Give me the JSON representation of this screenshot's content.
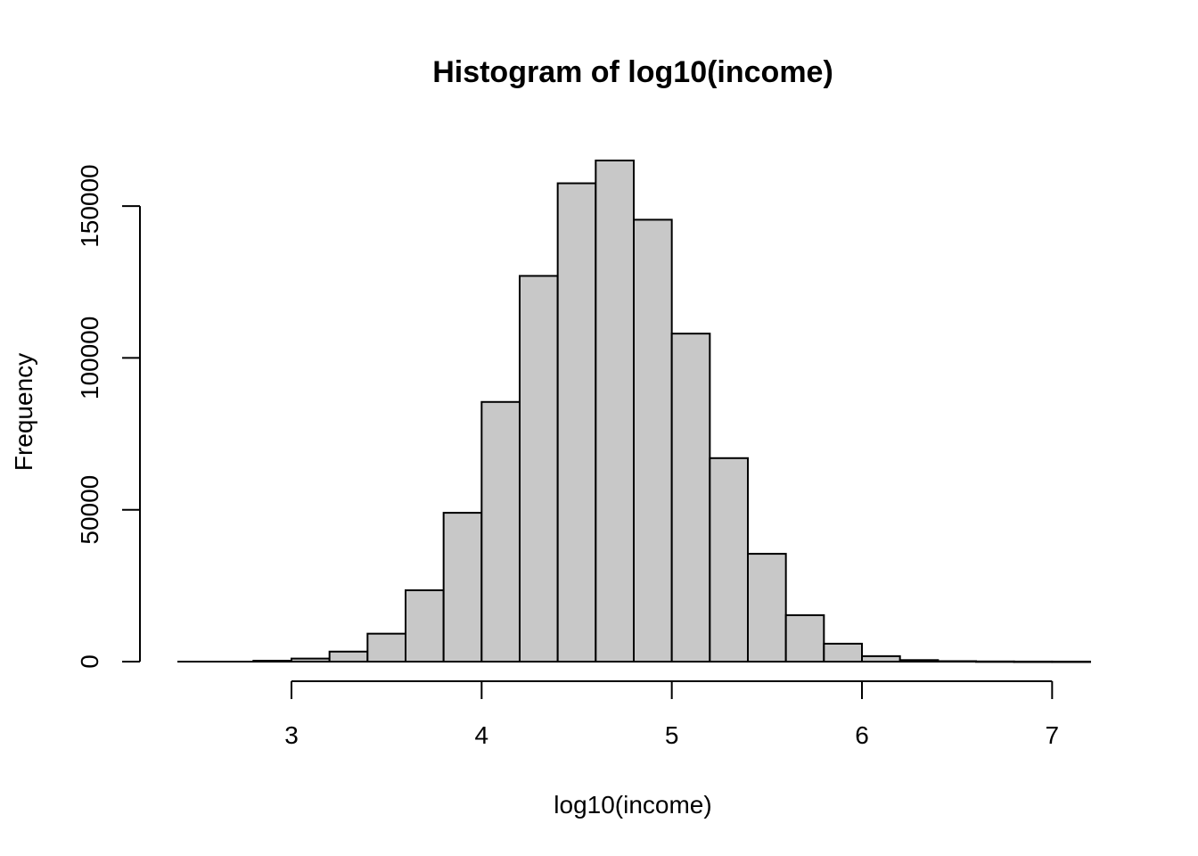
{
  "chart_data": {
    "type": "bar",
    "title": "Histogram of log10(income)",
    "xlabel": "log10(income)",
    "ylabel": "Frequency",
    "xlim": [
      2.4,
      7.2
    ],
    "ylim": [
      0,
      165000
    ],
    "x_ticks": [
      3,
      4,
      5,
      6,
      7
    ],
    "y_ticks": [
      0,
      50000,
      100000,
      150000
    ],
    "bar_fill": "#c8c8c8",
    "grid": false,
    "bins": [
      {
        "start": 2.4,
        "end": 2.6,
        "count": 0
      },
      {
        "start": 2.6,
        "end": 2.8,
        "count": 0
      },
      {
        "start": 2.8,
        "end": 3.0,
        "count": 300
      },
      {
        "start": 3.0,
        "end": 3.2,
        "count": 1000
      },
      {
        "start": 3.2,
        "end": 3.4,
        "count": 3300
      },
      {
        "start": 3.4,
        "end": 3.6,
        "count": 9200
      },
      {
        "start": 3.6,
        "end": 3.8,
        "count": 23500
      },
      {
        "start": 3.8,
        "end": 4.0,
        "count": 49000
      },
      {
        "start": 4.0,
        "end": 4.2,
        "count": 85500
      },
      {
        "start": 4.2,
        "end": 4.4,
        "count": 127000
      },
      {
        "start": 4.4,
        "end": 4.6,
        "count": 157500
      },
      {
        "start": 4.6,
        "end": 4.8,
        "count": 165000
      },
      {
        "start": 4.8,
        "end": 5.0,
        "count": 145500
      },
      {
        "start": 5.0,
        "end": 5.2,
        "count": 108000
      },
      {
        "start": 5.2,
        "end": 5.4,
        "count": 67000
      },
      {
        "start": 5.4,
        "end": 5.6,
        "count": 35500
      },
      {
        "start": 5.6,
        "end": 5.8,
        "count": 15300
      },
      {
        "start": 5.8,
        "end": 6.0,
        "count": 5900
      },
      {
        "start": 6.0,
        "end": 6.2,
        "count": 1800
      },
      {
        "start": 6.2,
        "end": 6.4,
        "count": 500
      },
      {
        "start": 6.4,
        "end": 6.6,
        "count": 150
      },
      {
        "start": 6.6,
        "end": 6.8,
        "count": 60
      },
      {
        "start": 6.8,
        "end": 7.0,
        "count": 20
      },
      {
        "start": 7.0,
        "end": 7.2,
        "count": 10
      }
    ]
  }
}
